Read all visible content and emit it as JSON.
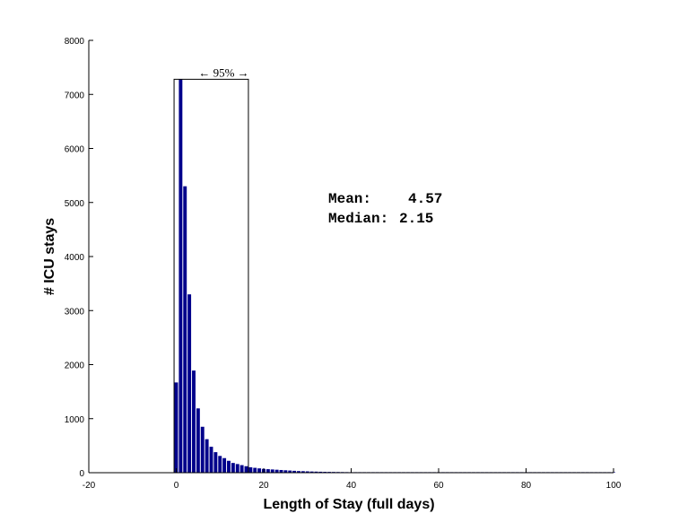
{
  "chart_data": {
    "type": "bar",
    "xlabel": "Length of Stay (full days)",
    "ylabel": "# ICU stays",
    "xlim": [
      -20,
      100
    ],
    "ylim": [
      0,
      8000
    ],
    "xticks": [
      -20,
      0,
      20,
      40,
      60,
      80,
      100
    ],
    "yticks": [
      0,
      1000,
      2000,
      3000,
      4000,
      5000,
      6000,
      7000,
      8000
    ],
    "bar_color": "#00008b",
    "grid": false,
    "bins": [
      0,
      1,
      2,
      3,
      4,
      5,
      6,
      7,
      8,
      9,
      10,
      11,
      12,
      13,
      14,
      15,
      16,
      17,
      18,
      19,
      20,
      21,
      22,
      23,
      24,
      25,
      26,
      27,
      28,
      29,
      30,
      31,
      32,
      33,
      34,
      35,
      36,
      37,
      38,
      39,
      40,
      41,
      42,
      43,
      44,
      45,
      46,
      47,
      48,
      49,
      50,
      51,
      52,
      53,
      54,
      55,
      56,
      57,
      58,
      59,
      60,
      61,
      62,
      63,
      64,
      65,
      66,
      67,
      68,
      69,
      70,
      71,
      72,
      73,
      74,
      75,
      76,
      77,
      78,
      79,
      80,
      81,
      82,
      83,
      84,
      85,
      86,
      87,
      88,
      89,
      90,
      91,
      92,
      93,
      94,
      95,
      96,
      97,
      98,
      99,
      100
    ],
    "values": [
      1670,
      7280,
      5300,
      3300,
      1890,
      1190,
      850,
      620,
      480,
      380,
      310,
      270,
      220,
      180,
      160,
      140,
      120,
      100,
      90,
      80,
      70,
      65,
      60,
      55,
      50,
      45,
      40,
      35,
      30,
      28,
      25,
      22,
      20,
      18,
      16,
      15,
      14,
      13,
      12,
      11,
      10,
      9,
      8,
      8,
      7,
      7,
      6,
      6,
      5,
      5,
      5,
      4,
      4,
      4,
      3,
      3,
      3,
      3,
      2,
      2,
      2,
      2,
      2,
      2,
      2,
      2,
      1,
      1,
      1,
      1,
      1,
      1,
      1,
      1,
      1,
      1,
      1,
      1,
      1,
      1,
      1,
      1,
      1,
      1,
      1,
      1,
      1,
      1,
      1,
      1,
      1,
      1,
      1,
      1,
      1,
      1,
      1,
      1,
      1,
      1,
      1
    ],
    "interval_box": {
      "label": "← 95% →",
      "x_start": -0.5,
      "x_end": 16.5,
      "top": 7280
    },
    "annotations": {
      "mean_label": "Mean:",
      "mean_value": "4.57",
      "median_label": "Median:",
      "median_value": "2.15"
    }
  }
}
